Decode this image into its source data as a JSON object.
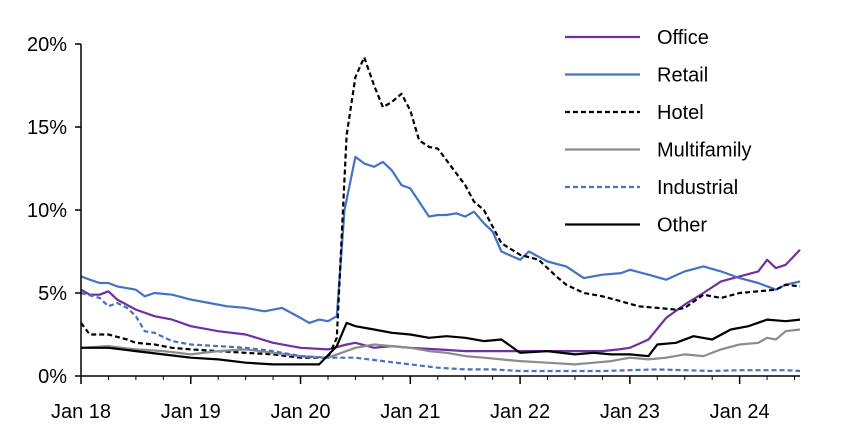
{
  "chart_data": {
    "type": "line",
    "title": "",
    "xlabel": "",
    "ylabel": "",
    "ylim": [
      0,
      20
    ],
    "y_ticks": [
      "0%",
      "5%",
      "10%",
      "15%",
      "20%"
    ],
    "y_tick_values": [
      0,
      5,
      10,
      15,
      20
    ],
    "x_ticks": [
      "Jan 18",
      "Jan 19",
      "Jan 20",
      "Jan 21",
      "Jan 22",
      "Jan 23",
      "Jan 24"
    ],
    "x_tick_values": [
      2018,
      2019,
      2020,
      2021,
      2022,
      2023,
      2024
    ],
    "xlim": [
      2018,
      2024.55
    ],
    "grid": false,
    "legend_position": "top-right",
    "series": [
      {
        "name": "Office",
        "color": "#7030a0",
        "dash": "solid",
        "x": [
          2018.0,
          2018.08,
          2018.17,
          2018.25,
          2018.33,
          2018.5,
          2018.67,
          2018.83,
          2019.0,
          2019.25,
          2019.5,
          2019.75,
          2020.0,
          2020.25,
          2020.42,
          2020.5,
          2020.67,
          2020.83,
          2021.0,
          2021.25,
          2021.5,
          2021.75,
          2022.0,
          2022.25,
          2022.5,
          2022.75,
          2022.9,
          2023.0,
          2023.17,
          2023.33,
          2023.5,
          2023.67,
          2023.83,
          2024.0,
          2024.17,
          2024.25,
          2024.33,
          2024.42,
          2024.55
        ],
        "values": [
          5.2,
          4.9,
          4.9,
          5.1,
          4.6,
          4.0,
          3.6,
          3.4,
          3.0,
          2.7,
          2.5,
          2.0,
          1.7,
          1.6,
          1.9,
          2.0,
          1.7,
          1.8,
          1.7,
          1.6,
          1.5,
          1.5,
          1.5,
          1.5,
          1.5,
          1.5,
          1.6,
          1.7,
          2.2,
          3.5,
          4.3,
          5.0,
          5.7,
          6.0,
          6.3,
          7.0,
          6.5,
          6.7,
          7.6
        ]
      },
      {
        "name": "Retail",
        "color": "#4472c4",
        "dash": "solid",
        "x": [
          2018.0,
          2018.08,
          2018.17,
          2018.25,
          2018.33,
          2018.5,
          2018.58,
          2018.67,
          2018.83,
          2019.0,
          2019.17,
          2019.33,
          2019.5,
          2019.67,
          2019.83,
          2020.0,
          2020.08,
          2020.17,
          2020.25,
          2020.33,
          2020.4,
          2020.5,
          2020.58,
          2020.67,
          2020.75,
          2020.83,
          2020.92,
          2021.0,
          2021.08,
          2021.17,
          2021.25,
          2021.33,
          2021.42,
          2021.5,
          2021.58,
          2021.67,
          2021.75,
          2021.83,
          2022.0,
          2022.08,
          2022.25,
          2022.42,
          2022.58,
          2022.75,
          2022.92,
          2023.0,
          2023.17,
          2023.33,
          2023.5,
          2023.67,
          2023.83,
          2024.0,
          2024.17,
          2024.33,
          2024.42,
          2024.55
        ],
        "values": [
          6.0,
          5.8,
          5.6,
          5.6,
          5.4,
          5.2,
          4.8,
          5.0,
          4.9,
          4.6,
          4.4,
          4.2,
          4.1,
          3.9,
          4.1,
          3.5,
          3.2,
          3.4,
          3.3,
          3.6,
          10.0,
          13.2,
          12.8,
          12.6,
          12.9,
          12.4,
          11.5,
          11.3,
          10.5,
          9.6,
          9.7,
          9.7,
          9.8,
          9.6,
          9.9,
          9.2,
          8.7,
          7.5,
          7.0,
          7.5,
          6.9,
          6.6,
          5.9,
          6.1,
          6.2,
          6.4,
          6.1,
          5.8,
          6.3,
          6.6,
          6.3,
          5.9,
          5.6,
          5.2,
          5.5,
          5.7
        ]
      },
      {
        "name": "Hotel",
        "color": "#000000",
        "dash": "dashed",
        "x": [
          2018.0,
          2018.08,
          2018.25,
          2018.42,
          2018.5,
          2018.67,
          2018.83,
          2019.0,
          2019.25,
          2019.5,
          2019.75,
          2020.0,
          2020.25,
          2020.33,
          2020.42,
          2020.5,
          2020.58,
          2020.67,
          2020.75,
          2020.83,
          2020.92,
          2021.0,
          2021.08,
          2021.17,
          2021.25,
          2021.33,
          2021.42,
          2021.5,
          2021.58,
          2021.67,
          2021.75,
          2021.83,
          2022.0,
          2022.17,
          2022.33,
          2022.42,
          2022.58,
          2022.75,
          2022.92,
          2023.08,
          2023.25,
          2023.42,
          2023.5,
          2023.67,
          2023.83,
          2024.0,
          2024.17,
          2024.33,
          2024.42,
          2024.55
        ],
        "values": [
          3.2,
          2.5,
          2.5,
          2.2,
          2.0,
          1.9,
          1.7,
          1.6,
          1.5,
          1.4,
          1.3,
          1.1,
          1.1,
          2.3,
          14.5,
          18.0,
          19.2,
          17.5,
          16.2,
          16.5,
          17.0,
          16.0,
          14.2,
          13.8,
          13.7,
          13.0,
          12.2,
          11.5,
          10.5,
          10.0,
          9.0,
          8.0,
          7.3,
          7.0,
          6.0,
          5.5,
          5.0,
          4.8,
          4.5,
          4.2,
          4.1,
          4.0,
          4.1,
          4.9,
          4.7,
          5.0,
          5.1,
          5.2,
          5.5,
          5.4
        ]
      },
      {
        "name": "Multifamily",
        "color": "#8c8c8c",
        "dash": "solid",
        "x": [
          2018.0,
          2018.25,
          2018.5,
          2018.75,
          2019.0,
          2019.25,
          2019.5,
          2019.75,
          2020.0,
          2020.25,
          2020.5,
          2020.67,
          2020.83,
          2021.0,
          2021.17,
          2021.33,
          2021.5,
          2021.67,
          2021.83,
          2022.0,
          2022.25,
          2022.5,
          2022.67,
          2022.83,
          2023.0,
          2023.17,
          2023.33,
          2023.5,
          2023.67,
          2023.83,
          2024.0,
          2024.17,
          2024.25,
          2024.33,
          2024.42,
          2024.55
        ],
        "values": [
          1.7,
          1.8,
          1.6,
          1.5,
          1.3,
          1.5,
          1.6,
          1.4,
          1.2,
          1.1,
          1.7,
          1.9,
          1.8,
          1.7,
          1.5,
          1.4,
          1.2,
          1.1,
          1.0,
          0.9,
          0.8,
          0.7,
          0.8,
          0.9,
          1.1,
          1.0,
          1.1,
          1.3,
          1.2,
          1.6,
          1.9,
          2.0,
          2.3,
          2.2,
          2.7,
          2.8
        ]
      },
      {
        "name": "Industrial",
        "color": "#4472c4",
        "dash": "dashed",
        "x": [
          2018.0,
          2018.17,
          2018.25,
          2018.33,
          2018.42,
          2018.5,
          2018.58,
          2018.67,
          2018.83,
          2019.0,
          2019.25,
          2019.5,
          2019.75,
          2020.0,
          2020.25,
          2020.5,
          2020.75,
          2021.0,
          2021.25,
          2021.5,
          2021.75,
          2022.0,
          2022.25,
          2022.5,
          2022.75,
          2023.0,
          2023.25,
          2023.5,
          2023.75,
          2024.0,
          2024.25,
          2024.42,
          2024.55
        ],
        "values": [
          5.0,
          4.7,
          4.2,
          4.4,
          4.1,
          3.6,
          2.7,
          2.6,
          2.1,
          1.9,
          1.8,
          1.7,
          1.5,
          1.2,
          1.1,
          1.1,
          0.9,
          0.7,
          0.5,
          0.4,
          0.4,
          0.3,
          0.3,
          0.3,
          0.3,
          0.35,
          0.4,
          0.35,
          0.3,
          0.35,
          0.35,
          0.35,
          0.3
        ]
      },
      {
        "name": "Other",
        "color": "#000000",
        "dash": "solid",
        "x": [
          2018.0,
          2018.25,
          2018.5,
          2018.75,
          2019.0,
          2019.25,
          2019.5,
          2019.75,
          2020.0,
          2020.17,
          2020.33,
          2020.42,
          2020.5,
          2020.67,
          2020.83,
          2021.0,
          2021.17,
          2021.33,
          2021.5,
          2021.67,
          2021.83,
          2022.0,
          2022.25,
          2022.5,
          2022.67,
          2022.83,
          2023.0,
          2023.17,
          2023.25,
          2023.42,
          2023.58,
          2023.75,
          2023.92,
          2024.08,
          2024.25,
          2024.42,
          2024.55
        ],
        "values": [
          1.7,
          1.7,
          1.5,
          1.3,
          1.1,
          1.0,
          0.8,
          0.7,
          0.7,
          0.7,
          1.8,
          3.2,
          3.0,
          2.8,
          2.6,
          2.5,
          2.3,
          2.4,
          2.3,
          2.1,
          2.2,
          1.4,
          1.5,
          1.3,
          1.4,
          1.3,
          1.3,
          1.2,
          1.9,
          2.0,
          2.4,
          2.2,
          2.8,
          3.0,
          3.4,
          3.3,
          3.4
        ]
      }
    ]
  }
}
